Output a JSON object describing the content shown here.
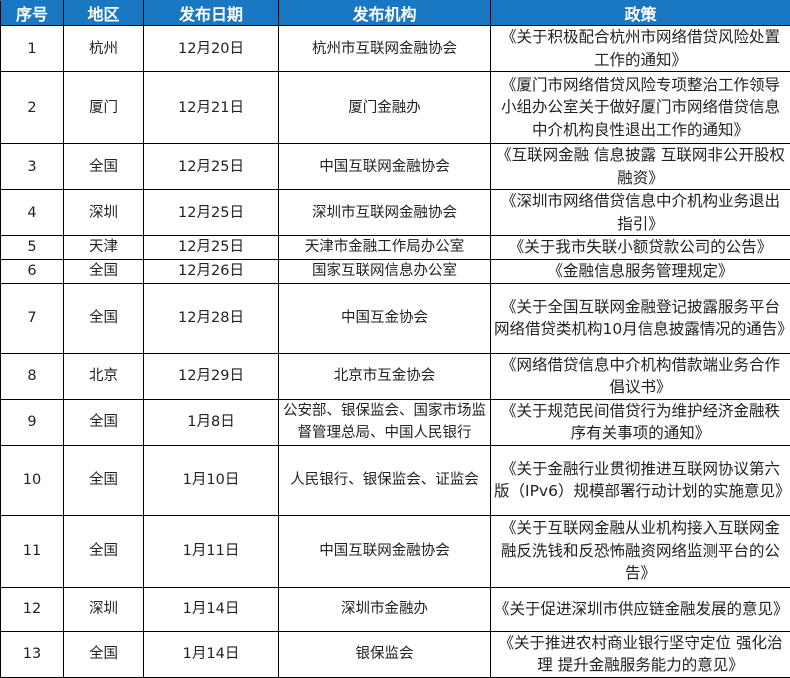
{
  "header": {
    "colors": {
      "header_bg": "#1a78c2"
    },
    "columns": [
      "序号",
      "地区",
      "发布日期",
      "发布机构",
      "政策"
    ]
  },
  "rows": [
    {
      "no": "1",
      "region": "杭州",
      "date": "12月20日",
      "org": "杭州市互联网金融协会",
      "policy": "《关于积极配合杭州市网络借贷风险处置工作的通知》"
    },
    {
      "no": "2",
      "region": "厦门",
      "date": "12月21日",
      "org": "厦门金融办",
      "policy": "《厦门市网络借贷风险专项整治工作领导小组办公室关于做好厦门市网络借贷信息中介机构良性退出工作的通知》"
    },
    {
      "no": "3",
      "region": "全国",
      "date": "12月25日",
      "org": "中国互联网金融协会",
      "policy": "《互联网金融 信息披露 互联网非公开股权融资》"
    },
    {
      "no": "4",
      "region": "深圳",
      "date": "12月25日",
      "org": "深圳市互联网金融协会",
      "policy": "《深圳市网络借贷信息中介机构业务退出指引》"
    },
    {
      "no": "5",
      "region": "天津",
      "date": "12月25日",
      "org": "天津市金融工作局办公室",
      "policy": "《关于我市失联小额贷款公司的公告》"
    },
    {
      "no": "6",
      "region": "全国",
      "date": "12月26日",
      "org": "国家互联网信息办公室",
      "policy": "《金融信息服务管理规定》"
    },
    {
      "no": "7",
      "region": "全国",
      "date": "12月28日",
      "org": "中国互金协会",
      "policy": "《关于全国互联网金融登记披露服务平台网络借贷类机构10月信息披露情况的通告》"
    },
    {
      "no": "8",
      "region": "北京",
      "date": "12月29日",
      "org": "北京市互金协会",
      "policy": "《网络借贷信息中介机构借款端业务合作倡议书》"
    },
    {
      "no": "9",
      "region": "全国",
      "date": "1月8日",
      "org": "公安部、银保监会、国家市场监督管理总局、中国人民银行",
      "policy": "《关于规范民间借贷行为维护经济金融秩序有关事项的通知》"
    },
    {
      "no": "10",
      "region": "全国",
      "date": "1月10日",
      "org": "人民银行、银保监会、证监会",
      "policy": "《关于金融行业贯彻推进互联网协议第六版（IPv6）规模部署行动计划的实施意见》"
    },
    {
      "no": "11",
      "region": "全国",
      "date": "1月11日",
      "org": "中国互联网金融协会",
      "policy": "《关于互联网金融从业机构接入互联网金融反洗钱和反恐怖融资网络监测平台的公告》"
    },
    {
      "no": "12",
      "region": "深圳",
      "date": "1月14日",
      "org": "深圳市金融办",
      "policy": "《关于促进深圳市供应链金融发展的意见》"
    },
    {
      "no": "13",
      "region": "全国",
      "date": "1月14日",
      "org": "银保监会",
      "policy": "《关于推进农村商业银行坚守定位 强化治理 提升金融服务能力的意见》"
    }
  ]
}
